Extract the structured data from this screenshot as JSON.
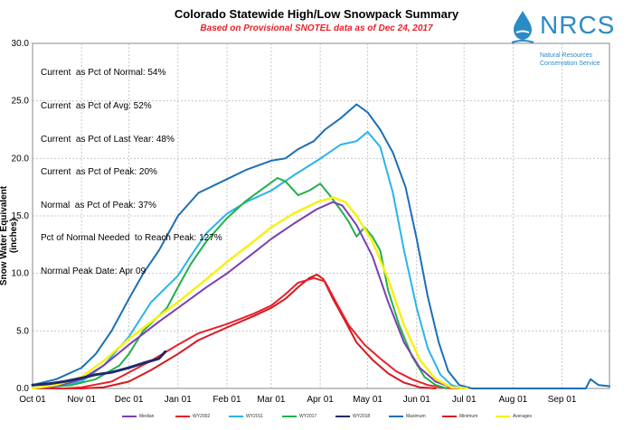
{
  "chart_data": {
    "type": "line",
    "title": "Colorado Statewide High/Low Snowpack Summary",
    "subtitle": "Based on Provisional SNOTEL data as of Dec 24, 2017",
    "ylabel": "Snow Water Equivalent (inches)",
    "xlabel": "",
    "ylim": [
      0,
      30
    ],
    "y_ticks": [
      "0.0",
      "5.0",
      "10.0",
      "15.0",
      "20.0",
      "25.0",
      "30.0"
    ],
    "x_ticks": [
      "Oct 01",
      "Nov 01",
      "Dec 01",
      "Jan 01",
      "Feb 01",
      "Mar 01",
      "Apr 01",
      "May 01",
      "Jun 01",
      "Jul 01",
      "Aug 01",
      "Sep 01"
    ],
    "x_range_days": [
      0,
      365
    ],
    "grid": true,
    "legend_position": "bottom",
    "stats": [
      "Current  as Pct of Normal: 54%",
      "Current  as Pct of Avg: 52%",
      "Current  as Pct of Last Year: 48%",
      "Current  as Pct of Peak: 20%",
      "Normal  as Pct of Peak: 37%",
      "Pct of Normal Needed  to Reach Peak: 127%",
      "Normal Peak Date: Apr 09"
    ],
    "series": [
      {
        "name": "Median",
        "color": "#7b3fb3",
        "width": 2,
        "points": [
          [
            0,
            0
          ],
          [
            15,
            0.2
          ],
          [
            31,
            0.8
          ],
          [
            45,
            2
          ],
          [
            61,
            3.8
          ],
          [
            80,
            5.8
          ],
          [
            92,
            7
          ],
          [
            110,
            8.8
          ],
          [
            123,
            10
          ],
          [
            140,
            11.8
          ],
          [
            151,
            13
          ],
          [
            165,
            14.3
          ],
          [
            180,
            15.6
          ],
          [
            190,
            16.2
          ],
          [
            196,
            15.9
          ],
          [
            205,
            14.2
          ],
          [
            215,
            11.5
          ],
          [
            225,
            7.5
          ],
          [
            235,
            4
          ],
          [
            245,
            1.8
          ],
          [
            255,
            0.6
          ],
          [
            265,
            0.1
          ],
          [
            275,
            0
          ]
        ]
      },
      {
        "name": "WY2002",
        "color": "#e8202a",
        "width": 2,
        "points": [
          [
            0,
            0
          ],
          [
            20,
            0
          ],
          [
            31,
            0.1
          ],
          [
            50,
            0.6
          ],
          [
            61,
            1.4
          ],
          [
            75,
            2.4
          ],
          [
            92,
            3.8
          ],
          [
            105,
            4.8
          ],
          [
            123,
            5.6
          ],
          [
            140,
            6.5
          ],
          [
            151,
            7.2
          ],
          [
            160,
            8.2
          ],
          [
            168,
            9.2
          ],
          [
            178,
            9.6
          ],
          [
            185,
            9.3
          ],
          [
            192,
            7.5
          ],
          [
            200,
            5.5
          ],
          [
            210,
            3.8
          ],
          [
            220,
            2.6
          ],
          [
            230,
            1.5
          ],
          [
            240,
            0.8
          ],
          [
            250,
            0.3
          ],
          [
            260,
            0.05
          ],
          [
            270,
            0
          ]
        ]
      },
      {
        "name": "WY2011",
        "color": "#29b4ea",
        "width": 2,
        "points": [
          [
            0,
            0
          ],
          [
            15,
            0.2
          ],
          [
            31,
            0.6
          ],
          [
            45,
            2
          ],
          [
            61,
            4.5
          ],
          [
            75,
            7.5
          ],
          [
            92,
            9.8
          ],
          [
            100,
            11.5
          ],
          [
            110,
            13.5
          ],
          [
            123,
            15.2
          ],
          [
            135,
            16.2
          ],
          [
            151,
            17.2
          ],
          [
            165,
            18.5
          ],
          [
            180,
            19.8
          ],
          [
            195,
            21.2
          ],
          [
            205,
            21.5
          ],
          [
            212,
            22.3
          ],
          [
            220,
            21
          ],
          [
            228,
            17
          ],
          [
            235,
            12
          ],
          [
            243,
            7
          ],
          [
            250,
            3.5
          ],
          [
            258,
            1.2
          ],
          [
            265,
            0.3
          ],
          [
            272,
            0
          ]
        ]
      },
      {
        "name": "WY2017",
        "color": "#22b04b",
        "width": 2,
        "points": [
          [
            0,
            0
          ],
          [
            25,
            0.3
          ],
          [
            40,
            0.8
          ],
          [
            55,
            2
          ],
          [
            61,
            3
          ],
          [
            70,
            5
          ],
          [
            85,
            7
          ],
          [
            92,
            8.8
          ],
          [
            100,
            10.8
          ],
          [
            110,
            12.8
          ],
          [
            123,
            14.8
          ],
          [
            135,
            16.3
          ],
          [
            150,
            17.8
          ],
          [
            155,
            18.3
          ],
          [
            160,
            18
          ],
          [
            168,
            16.8
          ],
          [
            175,
            17.2
          ],
          [
            182,
            17.8
          ],
          [
            188,
            16.8
          ],
          [
            195,
            15.5
          ],
          [
            200,
            14.5
          ],
          [
            205,
            13.2
          ],
          [
            210,
            14
          ],
          [
            215,
            13.2
          ],
          [
            220,
            12
          ],
          [
            225,
            8.5
          ],
          [
            232,
            5.5
          ],
          [
            240,
            2.8
          ],
          [
            248,
            1
          ],
          [
            255,
            0.3
          ],
          [
            262,
            0
          ]
        ]
      },
      {
        "name": "WY2018",
        "color": "#1f2a6b",
        "width": 3,
        "points": [
          [
            0,
            0.3
          ],
          [
            10,
            0.4
          ],
          [
            20,
            0.6
          ],
          [
            31,
            0.9
          ],
          [
            40,
            1.2
          ],
          [
            50,
            1.4
          ],
          [
            61,
            1.8
          ],
          [
            70,
            2.2
          ],
          [
            80,
            2.6
          ],
          [
            84,
            3.2
          ]
        ]
      },
      {
        "name": "Maximum",
        "color": "#1c6fb5",
        "width": 2,
        "points": [
          [
            0,
            0.3
          ],
          [
            15,
            0.8
          ],
          [
            31,
            1.8
          ],
          [
            40,
            3
          ],
          [
            50,
            5
          ],
          [
            61,
            7.8
          ],
          [
            70,
            10
          ],
          [
            80,
            12
          ],
          [
            92,
            15
          ],
          [
            105,
            17
          ],
          [
            123,
            18.2
          ],
          [
            135,
            19
          ],
          [
            145,
            19.5
          ],
          [
            151,
            19.8
          ],
          [
            160,
            20
          ],
          [
            168,
            20.8
          ],
          [
            178,
            21.5
          ],
          [
            185,
            22.5
          ],
          [
            195,
            23.5
          ],
          [
            205,
            24.7
          ],
          [
            212,
            24
          ],
          [
            220,
            22.5
          ],
          [
            228,
            20.5
          ],
          [
            236,
            17.5
          ],
          [
            243,
            13
          ],
          [
            250,
            8
          ],
          [
            257,
            4
          ],
          [
            263,
            1.5
          ],
          [
            270,
            0.3
          ],
          [
            278,
            0
          ],
          [
            350,
            0
          ],
          [
            353,
            0.8
          ],
          [
            358,
            0.3
          ],
          [
            365,
            0.2
          ]
        ]
      },
      {
        "name": "Minimum",
        "color": "#d41920",
        "width": 2,
        "points": [
          [
            0,
            0
          ],
          [
            31,
            0
          ],
          [
            45,
            0.1
          ],
          [
            61,
            0.6
          ],
          [
            75,
            1.6
          ],
          [
            92,
            3
          ],
          [
            105,
            4.2
          ],
          [
            123,
            5.3
          ],
          [
            140,
            6.3
          ],
          [
            151,
            7
          ],
          [
            160,
            7.8
          ],
          [
            168,
            8.8
          ],
          [
            175,
            9.6
          ],
          [
            180,
            9.9
          ],
          [
            184,
            9.5
          ],
          [
            190,
            7.8
          ],
          [
            198,
            5.8
          ],
          [
            205,
            4
          ],
          [
            215,
            2.5
          ],
          [
            225,
            1.3
          ],
          [
            235,
            0.5
          ],
          [
            245,
            0.1
          ],
          [
            255,
            0
          ]
        ]
      },
      {
        "name": "Averages",
        "color": "#f6f212",
        "width": 2.5,
        "points": [
          [
            0,
            0
          ],
          [
            15,
            0.3
          ],
          [
            31,
            1
          ],
          [
            45,
            2.4
          ],
          [
            61,
            4.3
          ],
          [
            80,
            6.3
          ],
          [
            92,
            7.5
          ],
          [
            110,
            9.5
          ],
          [
            123,
            11
          ],
          [
            140,
            12.8
          ],
          [
            151,
            14
          ],
          [
            165,
            15.2
          ],
          [
            180,
            16.2
          ],
          [
            190,
            16.6
          ],
          [
            198,
            16.2
          ],
          [
            205,
            15
          ],
          [
            215,
            12.8
          ],
          [
            225,
            9.5
          ],
          [
            235,
            5.5
          ],
          [
            245,
            2.5
          ],
          [
            255,
            0.8
          ],
          [
            265,
            0.1
          ],
          [
            275,
            0
          ]
        ]
      }
    ]
  },
  "logo": {
    "text": "NRCS",
    "subtitle_line1": "Natural Resources",
    "subtitle_line2": "Conservation Service",
    "color": "#2a8bc6"
  }
}
